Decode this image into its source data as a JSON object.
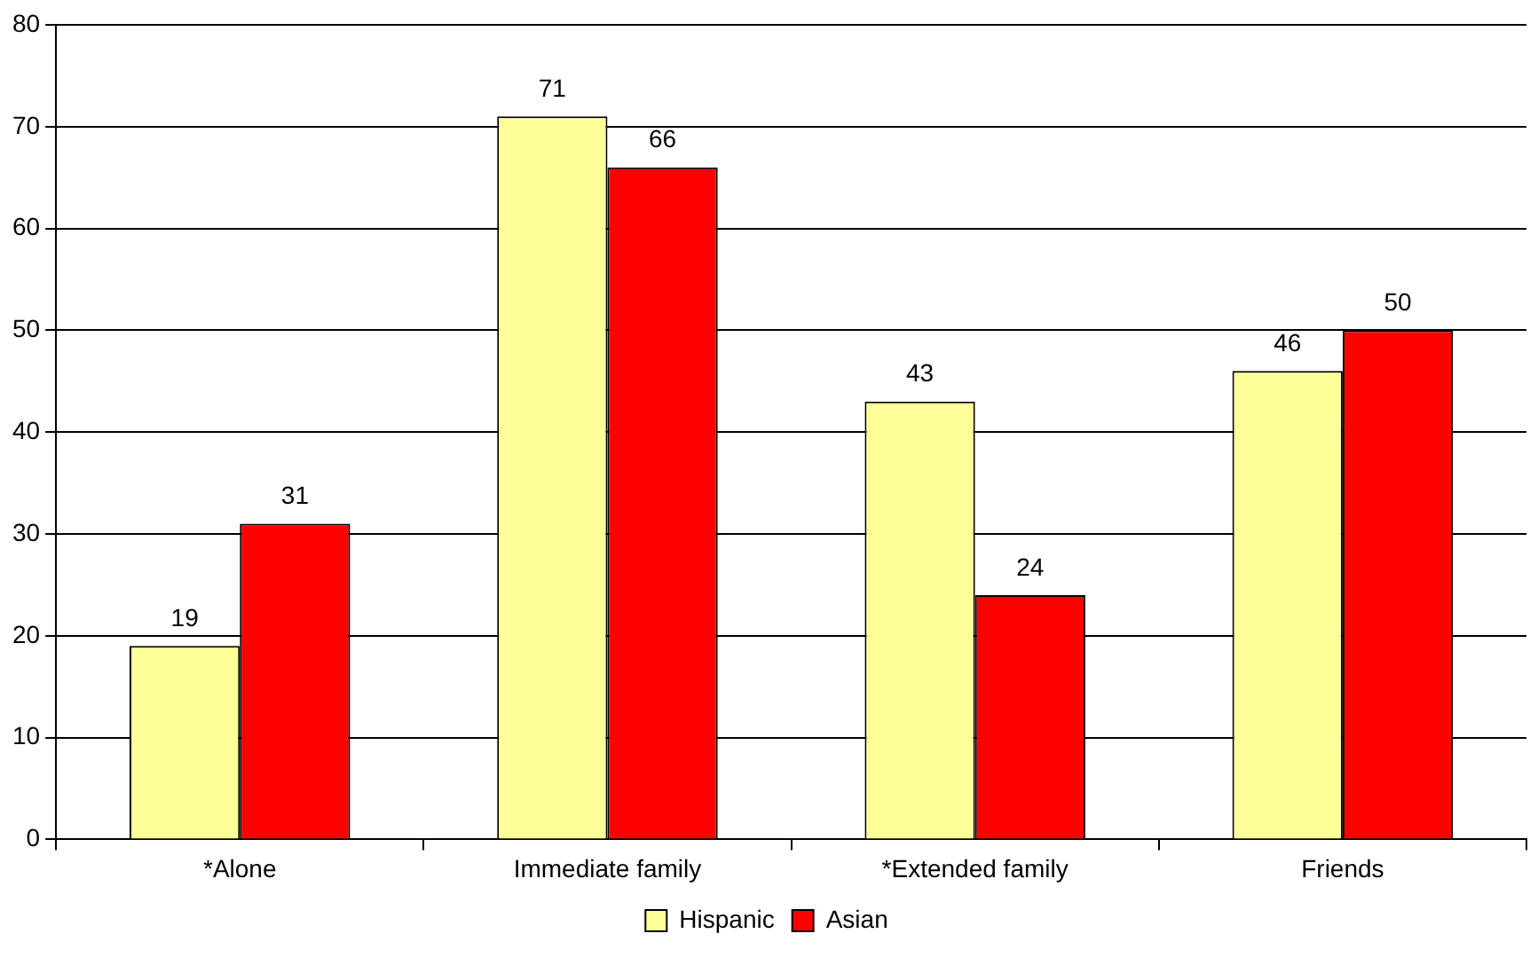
{
  "chart_data": {
    "type": "bar",
    "categories": [
      "*Alone",
      "Immediate family",
      "*Extended family",
      "Friends"
    ],
    "series": [
      {
        "name": "Hispanic",
        "color": "#ffff99",
        "values": [
          19,
          71,
          43,
          46
        ]
      },
      {
        "name": "Asian",
        "color": "#ff0000",
        "values": [
          31,
          66,
          24,
          50
        ]
      }
    ],
    "ylim": [
      0,
      80
    ],
    "yticks": [
      0,
      10,
      20,
      30,
      40,
      50,
      60,
      70,
      80
    ],
    "grid": "y",
    "legend": "bottom",
    "data_labels": true
  }
}
